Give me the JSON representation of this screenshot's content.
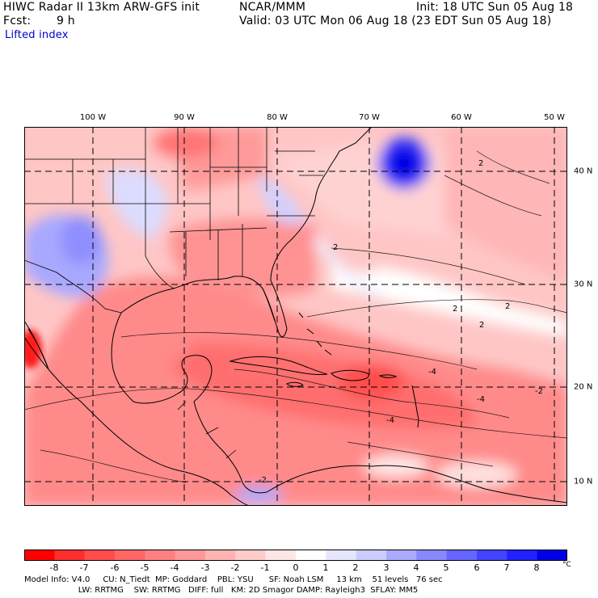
{
  "header": {
    "model": "HIWC Radar II 13km ARW-GFS init",
    "org": "NCAR/MMM",
    "init": "Init: 18 UTC Sun 05 Aug 18",
    "fcst_label": "Fcst:",
    "fcst_value": "9 h",
    "valid": "Valid: 03 UTC Mon 06 Aug 18 (23 EDT Sun 05 Aug 18)",
    "field": "Lifted index"
  },
  "map": {
    "longitude_labels": [
      "100 W",
      "90 W",
      "80 W",
      "70 W",
      "60 W",
      "50 W"
    ],
    "latitude_labels": [
      "40 N",
      "30 N",
      "20 N",
      "10 N"
    ],
    "contour_labels": [
      "2",
      "2",
      "2",
      "2",
      "2",
      "-4",
      "-4",
      "-4",
      "-2",
      "-2"
    ],
    "colors": {
      "land_border": "#000000",
      "neutral": "#ffffff",
      "positive_extreme": "#0000e6",
      "negative_extreme": "#ff0000"
    }
  },
  "legend": {
    "labels": [
      "-8",
      "-7",
      "-6",
      "-5",
      "-4",
      "-3",
      "-2",
      "-1",
      "0",
      "1",
      "2",
      "3",
      "4",
      "5",
      "6",
      "7",
      "8"
    ],
    "unit": "°C",
    "colors": [
      "#ff0000",
      "#ff2e2e",
      "#ff4d4d",
      "#ff6666",
      "#ff8080",
      "#ff9999",
      "#ffb3b3",
      "#ffcccc",
      "#ffe6e6",
      "#ffffff",
      "#e6e6ff",
      "#ccccff",
      "#aaaaff",
      "#8888ff",
      "#6666ff",
      "#4444ff",
      "#2222ff",
      "#0000e6"
    ]
  },
  "footer": {
    "line1": "Model Info: V4.0     CU: N_Tiedt  MP: Goddard    PBL: YSU      SF: Noah LSM     13 km    51 levels   76 sec",
    "line2": "                     LW: RRTMG    SW: RRTMG   DIFF: full   KM: 2D Smagor DAMP: Rayleigh3  SFLAY: MM5"
  }
}
